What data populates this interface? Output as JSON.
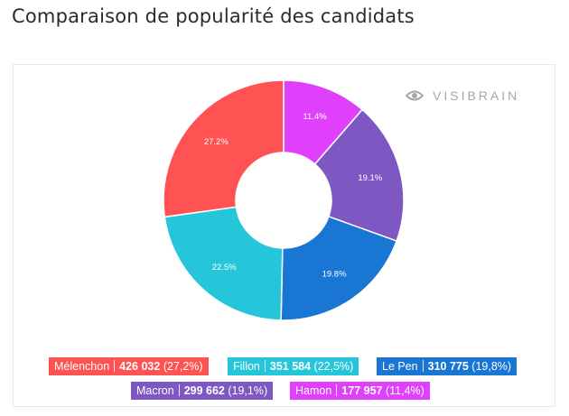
{
  "header": {
    "title": "Comparaison de popularité des candidats"
  },
  "watermark": {
    "text": "VISIBRAIN",
    "icon": "eye-icon"
  },
  "chart_data": {
    "type": "pie",
    "donut": true,
    "slices": [
      {
        "name": "Hamon",
        "value": 177957,
        "percent_label": "11.4%",
        "legend_value": "177 957",
        "legend_percent": "(11,4%)",
        "color": "#e040fb"
      },
      {
        "name": "Macron",
        "value": 299662,
        "percent_label": "19.1%",
        "legend_value": "299 662",
        "legend_percent": "(19,1%)",
        "color": "#7e57c2"
      },
      {
        "name": "Le Pen",
        "value": 310775,
        "percent_label": "19.8%",
        "legend_value": "310 775",
        "legend_percent": "(19,8%)",
        "color": "#1976d2"
      },
      {
        "name": "Fillon",
        "value": 351584,
        "percent_label": "22.5%",
        "legend_value": "351 584",
        "legend_percent": "(22,5%)",
        "color": "#26c6da"
      },
      {
        "name": "Mélenchon",
        "value": 426032,
        "percent_label": "27.2%",
        "legend_value": "426 032",
        "legend_percent": "(27,2%)",
        "color": "#ff5252"
      }
    ],
    "legend": [
      {
        "name": "Mélenchon",
        "value": "426 032",
        "percent": "(27,2%)",
        "color": "#ff5252"
      },
      {
        "name": "Fillon",
        "value": "351 584",
        "percent": "(22,5%)",
        "color": "#26c6da"
      },
      {
        "name": "Le Pen",
        "value": "310 775",
        "percent": "(19,8%)",
        "color": "#1976d2"
      },
      {
        "name": "Macron",
        "value": "299 662",
        "percent": "(19,1%)",
        "color": "#7e57c2"
      },
      {
        "name": "Hamon",
        "value": "177 957",
        "percent": "(11,4%)",
        "color": "#e040fb"
      }
    ],
    "legend_placement": "bottom"
  }
}
